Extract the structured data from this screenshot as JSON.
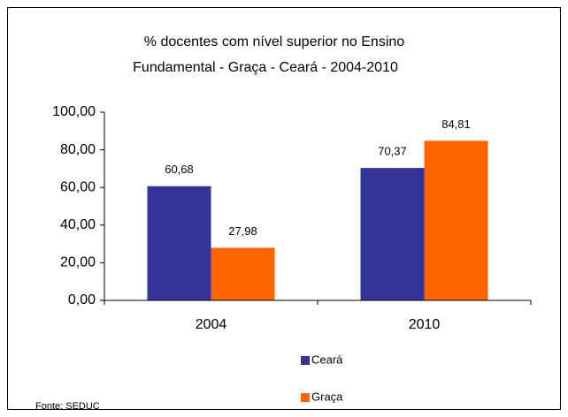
{
  "chart_data": {
    "type": "bar",
    "title": [
      "% docentes com nível  superior no Ensino",
      "Fundamental - Graça -  Ceará - 2004-2010"
    ],
    "categories": [
      "2004",
      "2010"
    ],
    "series": [
      {
        "name": "Ceará",
        "color": "#333399",
        "values": [
          60.68,
          70.37
        ],
        "value_labels": [
          "60,68",
          "70,37"
        ]
      },
      {
        "name": "Graça",
        "color": "#ff6600",
        "values": [
          27.98,
          84.81
        ],
        "value_labels": [
          "27,98",
          "84,81"
        ]
      }
    ],
    "ylim": [
      0,
      100
    ],
    "yticks": [
      {
        "value": 0,
        "label": "0,00"
      },
      {
        "value": 20,
        "label": "20,00"
      },
      {
        "value": 40,
        "label": "40,00"
      },
      {
        "value": 60,
        "label": "60,00"
      },
      {
        "value": 80,
        "label": "80,00"
      },
      {
        "value": 100,
        "label": "100,00"
      }
    ],
    "grid": false,
    "legend": "bottom",
    "note": "Fonte: SEDUC"
  }
}
